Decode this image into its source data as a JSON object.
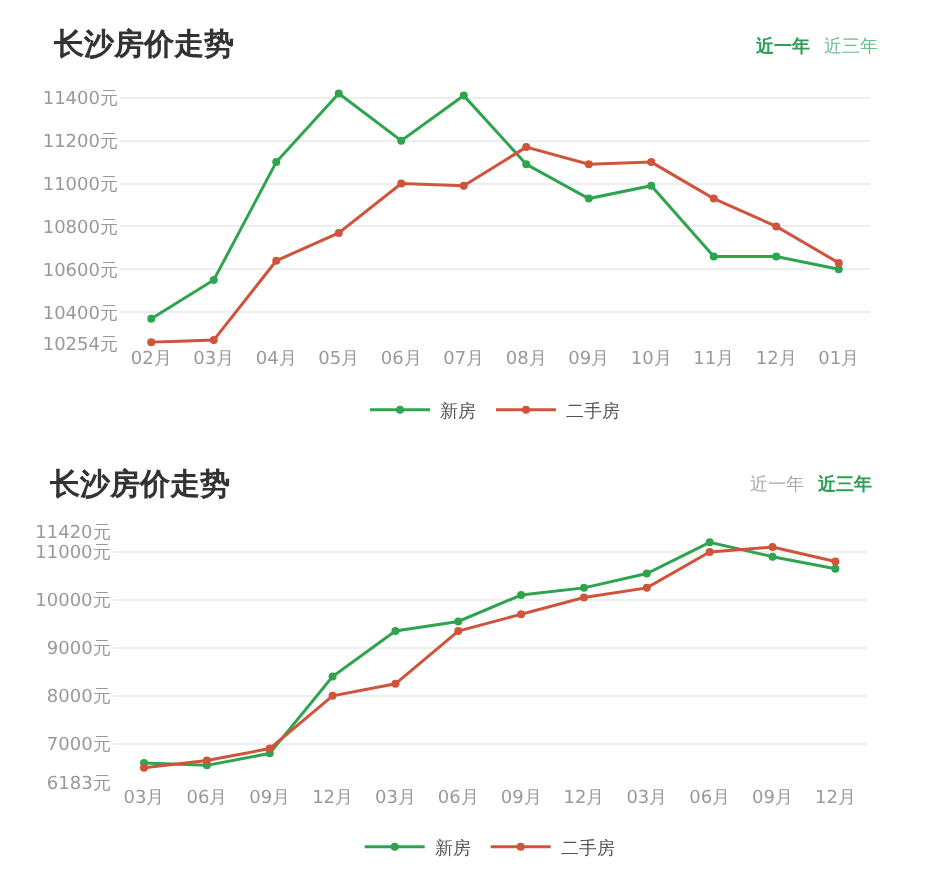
{
  "chart_data": [
    {
      "type": "line",
      "title": "长沙房价走势",
      "annotations": [
        "近一年",
        "近三年"
      ],
      "categories": [
        "02月",
        "03月",
        "04月",
        "05月",
        "06月",
        "07月",
        "08月",
        "09月",
        "10月",
        "11月",
        "12月",
        "01月"
      ],
      "series": [
        {
          "name": "新房",
          "color": "#2ea44f",
          "values": [
            10370,
            10550,
            11100,
            11420,
            11200,
            11410,
            11090,
            10930,
            10990,
            10660,
            10660,
            10600
          ]
        },
        {
          "name": "二手房",
          "color": "#d0543c",
          "values": [
            10260,
            10270,
            10640,
            10770,
            11000,
            10990,
            11170,
            11090,
            11100,
            10930,
            10800,
            10630
          ]
        }
      ],
      "ylim": [
        10254,
        11420
      ],
      "yticks": [
        {
          "value": 10254,
          "label": "10254元"
        },
        {
          "value": 10400,
          "label": "10400元"
        },
        {
          "value": 10600,
          "label": "10600元"
        },
        {
          "value": 10800,
          "label": "10800元"
        },
        {
          "value": 11000,
          "label": "11000元"
        },
        {
          "value": 11200,
          "label": "11200元"
        },
        {
          "value": 11400,
          "label": "11400元"
        }
      ],
      "grid": "y",
      "legend": "bottom",
      "marker": "circle"
    },
    {
      "type": "line",
      "title": "长沙房价走势",
      "annotations": [
        "近一年",
        "近三年"
      ],
      "categories": [
        "03月",
        "06月",
        "09月",
        "12月",
        "03月",
        "06月",
        "09月",
        "12月",
        "03月",
        "06月",
        "09月",
        "12月"
      ],
      "series": [
        {
          "name": "新房",
          "color": "#2ea44f",
          "values": [
            6600,
            6550,
            6800,
            8400,
            9350,
            9550,
            10100,
            10250,
            10550,
            11200,
            10900,
            10650
          ]
        },
        {
          "name": "二手房",
          "color": "#d0543c",
          "values": [
            6500,
            6650,
            6900,
            8000,
            8250,
            9350,
            9700,
            10050,
            10250,
            11000,
            11100,
            10800
          ]
        }
      ],
      "ylim": [
        6183,
        11420
      ],
      "yticks": [
        {
          "value": 6183,
          "label": "6183元"
        },
        {
          "value": 7000,
          "label": "7000元"
        },
        {
          "value": 8000,
          "label": "8000元"
        },
        {
          "value": 9000,
          "label": "9000元"
        },
        {
          "value": 10000,
          "label": "10000元"
        },
        {
          "value": 11000,
          "label": "11000元"
        },
        {
          "value": 11420,
          "label": "11420元"
        }
      ],
      "grid": "y",
      "legend": "bottom",
      "marker": "circle"
    }
  ]
}
